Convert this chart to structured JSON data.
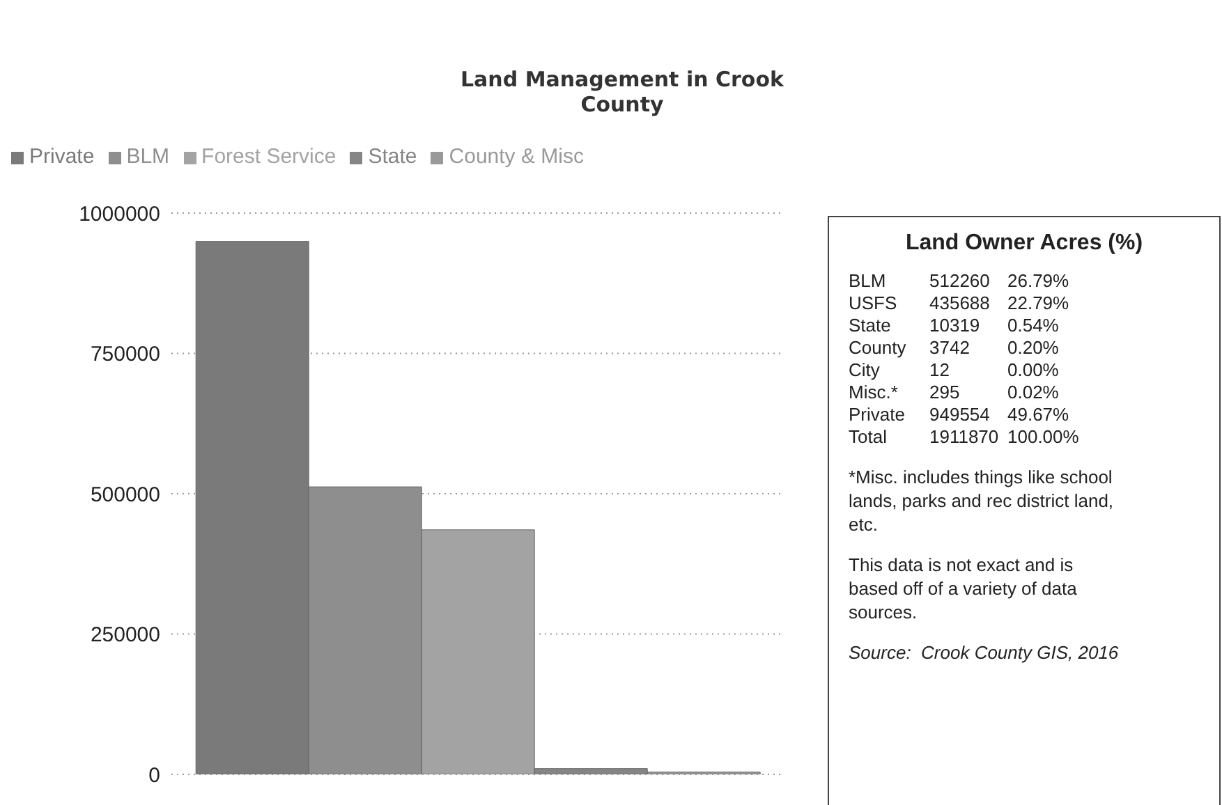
{
  "chart_data": [
    {
      "type": "bar",
      "title": "Land Management in Crook County",
      "categories": [
        null
      ],
      "series": [
        {
          "name": "Private",
          "color": "#7a7a7a",
          "values": [
            949554
          ]
        },
        {
          "name": "BLM",
          "color": "#8e8e8e",
          "values": [
            512260
          ]
        },
        {
          "name": "Forest Service",
          "color": "#a3a3a3",
          "values": [
            435688
          ]
        },
        {
          "name": "State",
          "color": "#858585",
          "values": [
            10319
          ]
        },
        {
          "name": "County & Misc",
          "color": "#999999",
          "values": [
            4049
          ]
        }
      ],
      "ylim": [
        0,
        1000000
      ],
      "yticks": [
        0,
        250000,
        500000,
        750000,
        1000000
      ],
      "grid": "y",
      "legend": "top left"
    },
    {
      "type": "other",
      "title": "Land Owner Acres (%)",
      "annotations": [
        "BLM 512260 26.79%",
        "USFS 435688 22.79%",
        "State 10319 0.54%",
        "County 3742 0.20%",
        "City 12 0.00%",
        "Misc.* 295 0.02%",
        "Private 949554 49.67%",
        "Total 1911870 100.00%",
        "*Misc. includes things like school lands, parks and rec district land, etc.",
        "This data is not exact and is based off of a variety of data sources.",
        "Source:  Crook County GIS, 2016"
      ]
    }
  ]
}
